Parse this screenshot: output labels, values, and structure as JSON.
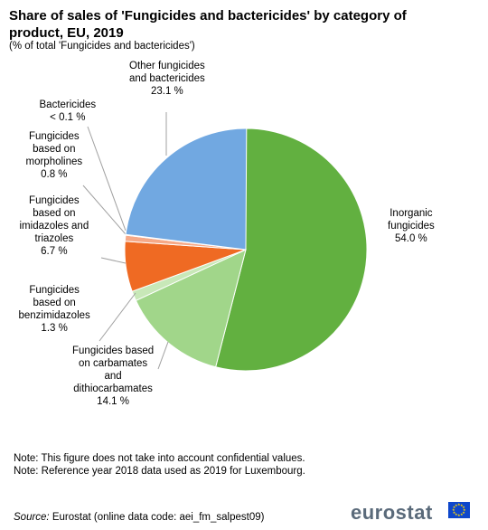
{
  "chart_data": {
    "type": "pie",
    "title": "Share of sales of 'Fungicides and bactericides' by category of product, EU, 2019",
    "subtitle": "(% of total 'Fungicides and bactericides')",
    "slices": [
      {
        "name": "Inorganic fungicides",
        "value": 54.0,
        "label_lines": [
          "Inorganic",
          "fungicides",
          "54.0 %"
        ],
        "color": "#62b040"
      },
      {
        "name": "Fungicides based on carbamates and dithiocarbamates",
        "value": 14.1,
        "label_lines": [
          "Fungicides based",
          "on carbamates",
          "and",
          "dithiocarbamates",
          "14.1 %"
        ],
        "color": "#a1d68a"
      },
      {
        "name": "Fungicides based on benzimidazoles",
        "value": 1.3,
        "label_lines": [
          "Fungicides",
          "based on",
          "benzimidazoles",
          "1.3 %"
        ],
        "color": "#c8e8b8"
      },
      {
        "name": "Fungicides based on imidazoles and triazoles",
        "value": 6.7,
        "label_lines": [
          "Fungicides",
          "based on",
          "imidazoles and",
          "triazoles",
          "6.7 %"
        ],
        "color": "#ef6a23"
      },
      {
        "name": "Fungicides based on morpholines",
        "value": 0.8,
        "label_lines": [
          "Fungicides",
          "based on",
          "morpholines",
          "0.8 %"
        ],
        "color": "#f6a987"
      },
      {
        "name": "Bactericides",
        "value": 0.0,
        "label_lines": [
          "Bactericides",
          "< 0.1 %"
        ],
        "color": "#f6a987"
      },
      {
        "name": "Other fungicides and bactericides",
        "value": 23.1,
        "label_lines": [
          "Other fungicides",
          "and bactericides",
          "23.1 %"
        ],
        "color": "#71a8e1"
      }
    ]
  },
  "notes": [
    "Note: This figure does not take into account confidential values.",
    "Note: Reference year 2018 data used as 2019 for Luxembourg."
  ],
  "source": {
    "key": "Source:",
    "text": "Eurostat (online data code: aei_fm_salpest09)"
  },
  "logo": {
    "text": "eurostat"
  }
}
